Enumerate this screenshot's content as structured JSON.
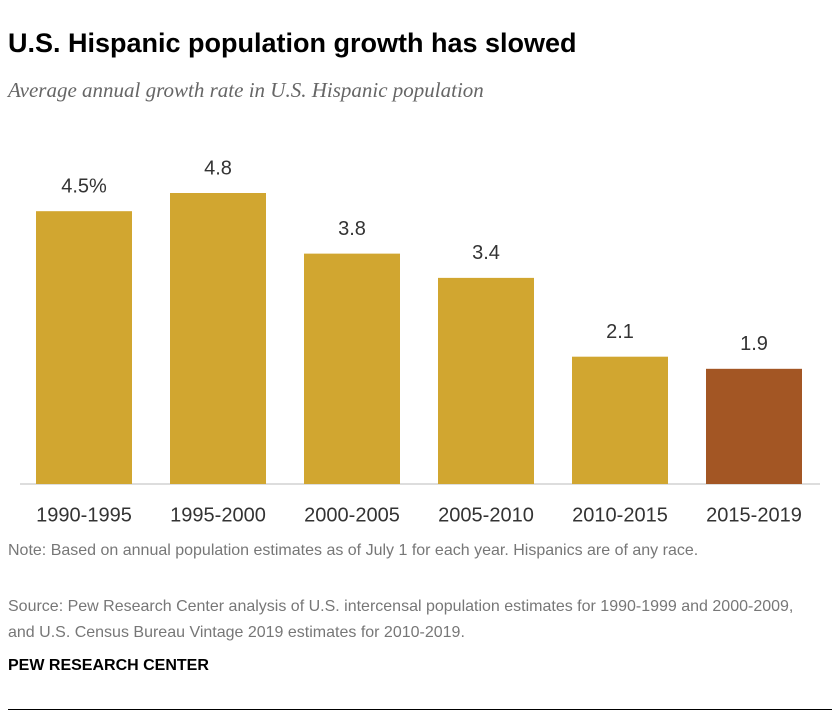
{
  "chart_data": {
    "type": "bar",
    "title": "U.S. Hispanic population growth has slowed",
    "subtitle": "Average annual growth rate in U.S. Hispanic population",
    "categories": [
      "1990-1995",
      "1995-2000",
      "2000-2005",
      "2005-2010",
      "2010-2015",
      "2015-2019"
    ],
    "values": [
      4.5,
      4.8,
      3.8,
      3.4,
      2.1,
      1.9
    ],
    "value_labels": [
      "4.5%",
      "4.8",
      "3.8",
      "3.4",
      "2.1",
      "1.9"
    ],
    "colors": [
      "#d1a630",
      "#d1a630",
      "#d1a630",
      "#d1a630",
      "#d1a630",
      "#a35624"
    ],
    "note": "Note: Based on annual population estimates as of July 1 for each year. Hispanics are of any race.",
    "source": "Source: Pew Research Center analysis of U.S. intercensal population estimates for 1990-1999 and 2000-2009, and U.S. Census Bureau Vintage 2019 estimates for 2010-2019.",
    "brand": "PEW RESEARCH CENTER"
  }
}
